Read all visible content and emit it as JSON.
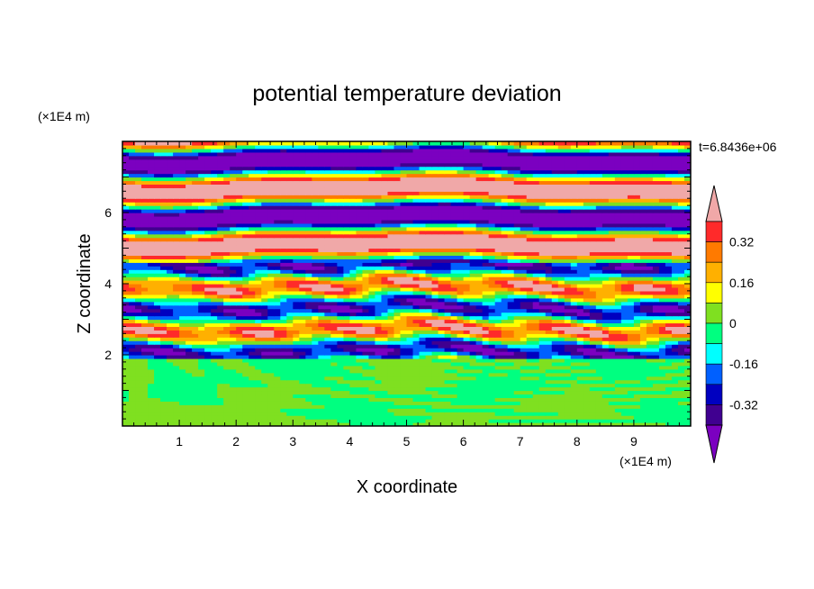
{
  "chart_data": {
    "type": "heatmap",
    "title": "potential temperature deviation",
    "xlabel": "X coordinate",
    "ylabel": "Z coordinate",
    "x_unit": "(×1E4 m)",
    "y_unit": "(×1E4 m)",
    "time_label": "t=6.8436e+06",
    "x_ticks": [
      1,
      2,
      3,
      4,
      5,
      6,
      7,
      8,
      9
    ],
    "y_ticks": [
      2,
      4,
      6
    ],
    "xlim": [
      0,
      10
    ],
    "ylim": [
      0,
      8
    ],
    "colorbar": {
      "labels": [
        "0.32",
        "0.16",
        "0",
        "-0.16",
        "-0.32"
      ],
      "levels": [
        0.4,
        0.32,
        0.24,
        0.16,
        0.08,
        0,
        -0.08,
        -0.16,
        -0.24,
        -0.32,
        -0.4
      ],
      "colors": [
        "#f0a8a8",
        "#ff2a2a",
        "#ff7a00",
        "#ffb000",
        "#ffff00",
        "#7fe020",
        "#00ff80",
        "#00ffff",
        "#0060ff",
        "#0000c0",
        "#400090",
        "#7b00c0"
      ],
      "extend": "both"
    },
    "field_description_layers": [
      {
        "z_range": [
          0,
          2
        ],
        "pattern": "mixed turbulent near-zero deviations (green/light-green)"
      },
      {
        "z_range": [
          2,
          4.5
        ],
        "pattern": "thin alternating positive/negative layers"
      },
      {
        "z_range": [
          4.5,
          8
        ],
        "pattern": "strong alternating layers of +0.4 and -0.4 (pink/purple)"
      }
    ]
  }
}
